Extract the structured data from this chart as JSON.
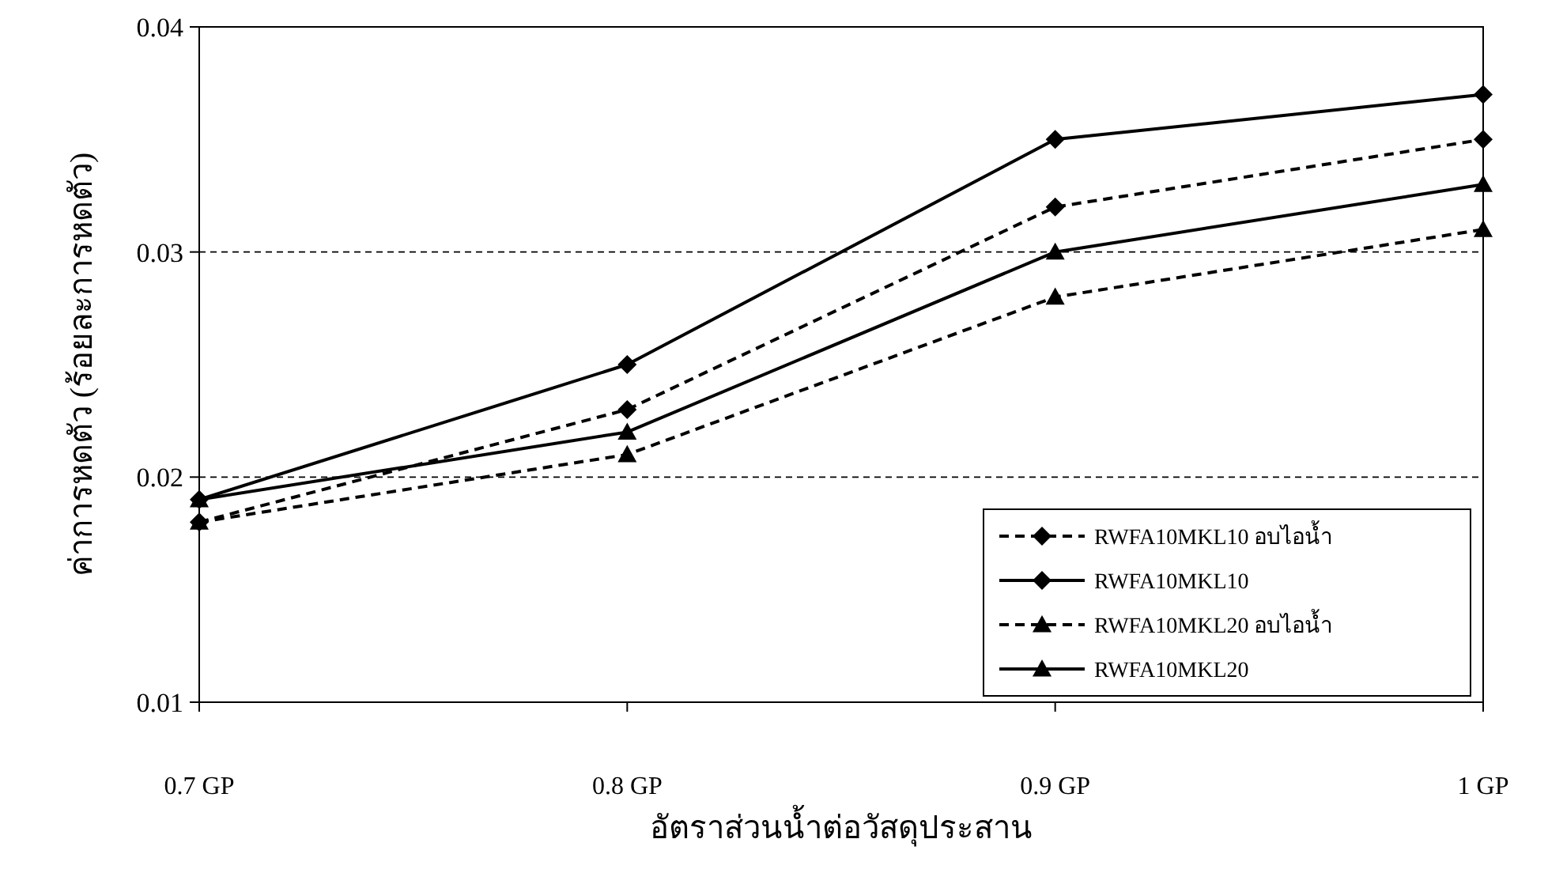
{
  "chart_data": {
    "type": "line",
    "xlabel": "อัตราส่วนน้ำต่อวัสดุประสาน",
    "ylabel": "ค่าการหดตัว (ร้อยละการหดตัว)",
    "categories": [
      "0.7 GP",
      "0.8 GP",
      "0.9 GP",
      "1 GP"
    ],
    "ylim": [
      0.01,
      0.04
    ],
    "yticks": [
      0.01,
      0.02,
      0.03,
      0.04
    ],
    "grid": "y",
    "legend": "bottom right",
    "series": [
      {
        "name": "RWFA10MKL10 อบไอน้ำ",
        "color": "#000000",
        "marker": "diamond",
        "line_style": "dashed",
        "values": [
          0.018,
          0.023,
          0.032,
          0.035
        ]
      },
      {
        "name": "RWFA10MKL10",
        "color": "#000000",
        "marker": "diamond",
        "line_style": "solid",
        "values": [
          0.019,
          0.025,
          0.035,
          0.037
        ]
      },
      {
        "name": "RWFA10MKL20 อบไอน้ำ",
        "color": "#000000",
        "marker": "triangle",
        "line_style": "dashed",
        "values": [
          0.018,
          0.021,
          0.028,
          0.031
        ]
      },
      {
        "name": "RWFA10MKL20",
        "color": "#000000",
        "marker": "triangle",
        "line_style": "solid",
        "values": [
          0.019,
          0.022,
          0.03,
          0.033
        ]
      }
    ]
  }
}
